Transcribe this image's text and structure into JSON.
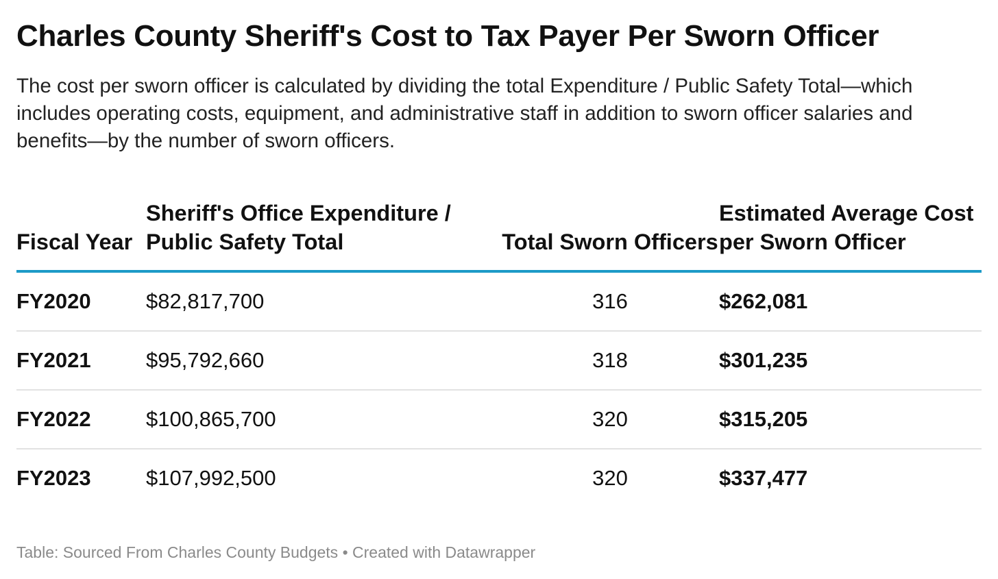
{
  "title": "Charles County Sheriff's Cost to Tax Payer Per Sworn Officer",
  "subtitle": "The cost per sworn officer is calculated by dividing the total Expenditure / Public Safety Total—which includes operating costs, equipment, and administrative staff in addition to sworn officer salaries and benefits—by the number of sworn officers.",
  "footer": "Table: Sourced From Charles County Budgets • Created with Datawrapper",
  "colors": {
    "accent": "#1d9ac7",
    "row_divider": "#e2e2e2",
    "footer_text": "#8a8a8a"
  },
  "chart_data": {
    "type": "table",
    "columns": [
      "Fiscal Year",
      "Sheriff's Office Expenditure / Public Safety Total",
      "Total Sworn Officers",
      "Estimated Average Cost per Sworn Officer"
    ],
    "rows": [
      [
        "FY2020",
        "$82,817,700",
        "316",
        "$262,081"
      ],
      [
        "FY2021",
        "$95,792,660",
        "318",
        "$301,235"
      ],
      [
        "FY2022",
        "$100,865,700",
        "320",
        "$315,205"
      ],
      [
        "FY2023",
        "$107,992,500",
        "320",
        "$337,477"
      ]
    ]
  }
}
